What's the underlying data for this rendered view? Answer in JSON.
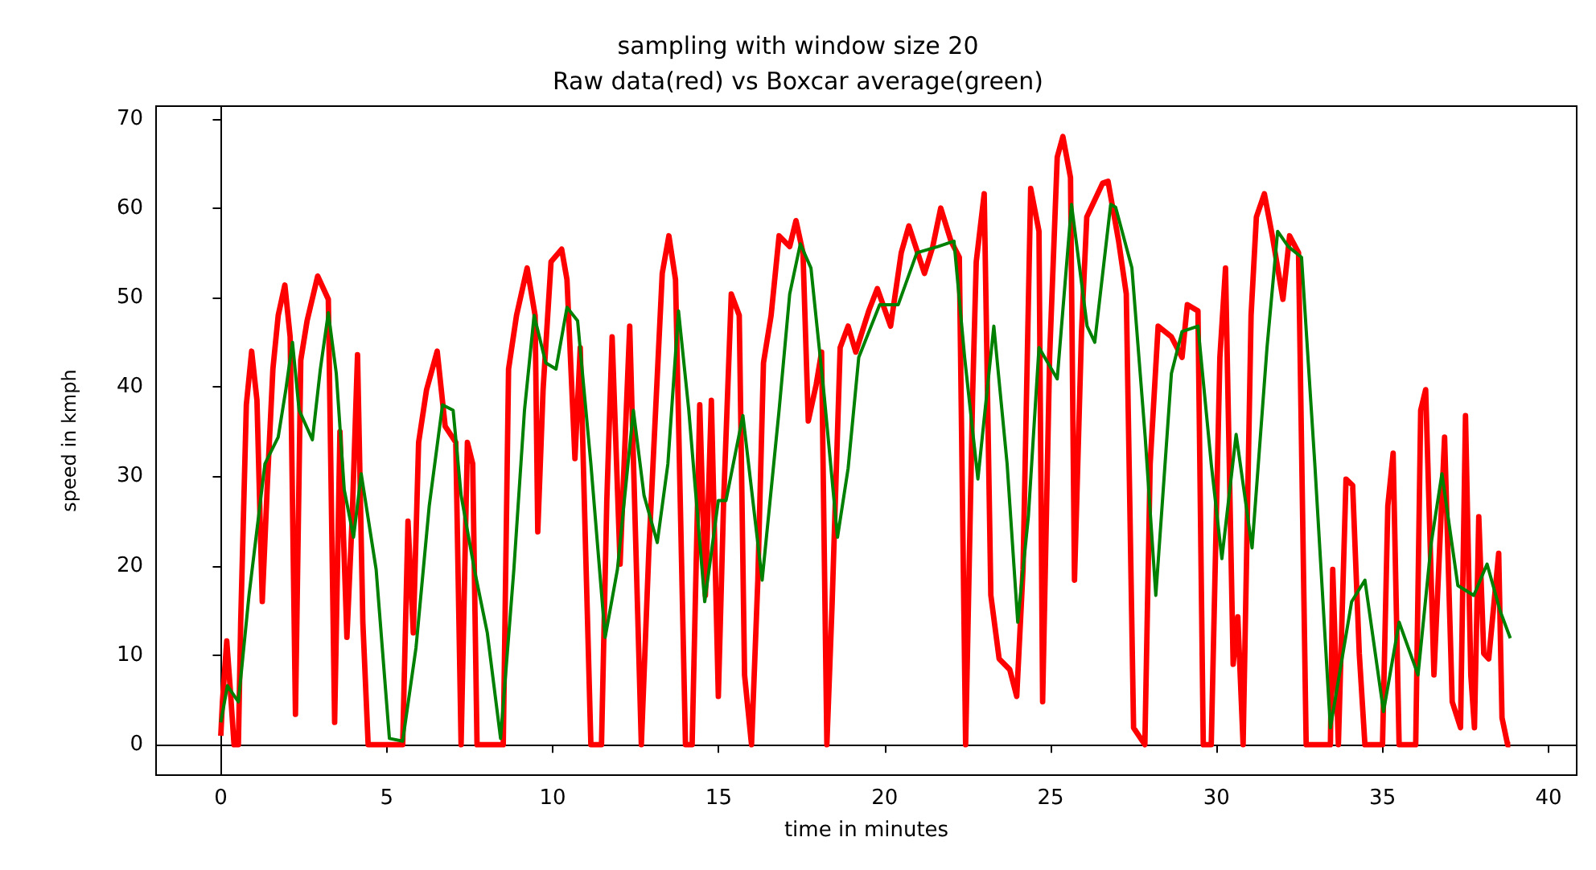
{
  "chart_data": {
    "type": "line",
    "title": "sampling with window size 20",
    "subtitle": "Raw data(red) vs Boxcar average(green)",
    "xlabel": "time in minutes",
    "ylabel": "speed in kmph",
    "xlim": [
      -1.95,
      40.85
    ],
    "ylim": [
      -3.4,
      71.4
    ],
    "xticks": [
      0,
      5,
      10,
      15,
      20,
      25,
      30,
      35,
      40
    ],
    "yticks": [
      0,
      10,
      20,
      30,
      40,
      50,
      60,
      70
    ],
    "series": [
      {
        "color": "#ff0000",
        "x": [
          0,
          0.05,
          0.18,
          0.29,
          0.4,
          0.53,
          0.6,
          0.77,
          0.93,
          1.09,
          1.25,
          1.41,
          1.57,
          1.73,
          1.93,
          2.09,
          2.25,
          2.41,
          2.6,
          2.92,
          3.24,
          3.43,
          3.59,
          3.8,
          3.96,
          4.12,
          4.28,
          4.44,
          5.48,
          5.64,
          5.8,
          5.96,
          6.2,
          6.52,
          6.76,
          7.08,
          7.24,
          7.43,
          7.59,
          7.72,
          8.51,
          8.67,
          8.91,
          9.23,
          9.47,
          9.55,
          9.71,
          9.95,
          10.27,
          10.43,
          10.67,
          10.83,
          10.99,
          11.15,
          11.47,
          11.63,
          11.79,
          12.03,
          12.32,
          12.67,
          12.9,
          13.3,
          13.5,
          13.7,
          14.0,
          14.2,
          14.43,
          14.6,
          14.78,
          14.99,
          15.15,
          15.38,
          15.62,
          15.78,
          15.99,
          16.18,
          16.35,
          16.58,
          16.82,
          17.14,
          17.33,
          17.54,
          17.7,
          17.94,
          18.1,
          18.26,
          18.42,
          18.66,
          18.9,
          19.13,
          19.53,
          19.78,
          20.18,
          20.5,
          20.73,
          21.2,
          21.45,
          21.69,
          22.0,
          22.25,
          22.44,
          22.65,
          22.76,
          23.0,
          23.2,
          23.45,
          23.77,
          23.98,
          24.17,
          24.4,
          24.65,
          24.76,
          24.97,
          25.2,
          25.37,
          25.6,
          25.72,
          25.93,
          26.09,
          26.57,
          26.73,
          27.05,
          27.28,
          27.5,
          27.84,
          28.0,
          28.24,
          28.64,
          28.96,
          29.12,
          29.44,
          29.6,
          29.84,
          30.1,
          30.27,
          30.5,
          30.64,
          30.8,
          31.04,
          31.2,
          31.44,
          31.68,
          32.0,
          32.2,
          32.47,
          32.7,
          33.43,
          33.5,
          33.67,
          33.9,
          34.1,
          34.3,
          34.47,
          35.0,
          35.16,
          35.32,
          35.5,
          36.0,
          36.15,
          36.3,
          36.55,
          36.87,
          37.1,
          37.35,
          37.5,
          37.66,
          37.77,
          37.9,
          38.05,
          38.2,
          38.5,
          38.6,
          38.77,
          38.85
        ],
        "values": [
          1,
          4.8,
          11.6,
          6,
          0,
          0,
          13.7,
          38,
          44,
          38.5,
          16,
          29.7,
          42,
          48,
          51.4,
          45.6,
          3.4,
          43,
          47.4,
          52.4,
          49.8,
          2.5,
          35,
          12,
          25.5,
          43.6,
          13.7,
          0,
          0,
          25,
          12.5,
          33.8,
          39.7,
          44,
          35.6,
          33.8,
          0,
          33.8,
          31.4,
          0,
          0,
          42,
          48,
          53.3,
          48,
          23.8,
          39.7,
          54,
          55.4,
          52,
          32,
          44.4,
          22,
          0,
          0,
          27.3,
          45.6,
          20.2,
          46.8,
          0,
          22,
          52.7,
          56.9,
          52,
          0,
          0,
          38,
          16.7,
          38.5,
          5.4,
          27.3,
          50.4,
          48,
          7.8,
          0,
          18.4,
          42.7,
          48,
          56.9,
          55.7,
          58.6,
          55,
          36.2,
          40.3,
          43.9,
          0,
          16,
          44.4,
          46.8,
          43.9,
          48.6,
          51,
          46.8,
          55,
          58,
          52.7,
          55.7,
          60,
          56.3,
          54.5,
          0,
          39,
          54,
          61.6,
          16.7,
          9.6,
          8.4,
          5.4,
          19.6,
          62.2,
          57.4,
          4.8,
          43.3,
          65.7,
          68,
          63.4,
          18.4,
          46,
          59,
          62.8,
          63,
          56.3,
          50.4,
          1.9,
          0,
          31.4,
          46.8,
          45.6,
          43.3,
          49.2,
          48.5,
          0,
          0,
          43.3,
          53.3,
          9,
          14.3,
          0,
          48,
          59,
          61.6,
          56.9,
          49.8,
          56.9,
          55,
          0,
          0,
          19.6,
          0,
          29.7,
          29,
          10.2,
          0,
          0,
          26.7,
          32.6,
          0,
          0,
          37.4,
          39.7,
          7.8,
          34.4,
          4.8,
          1.9,
          36.8,
          7.8,
          1.9,
          25.5,
          10.2,
          9.6,
          21.4,
          3,
          0,
          0
        ]
      },
      {
        "color": "#008000",
        "x": [
          0,
          0.2,
          0.53,
          0.85,
          1.33,
          1.73,
          1.96,
          2.16,
          2.36,
          2.76,
          3.0,
          3.24,
          3.48,
          3.72,
          4.0,
          4.23,
          4.68,
          5.08,
          5.48,
          5.88,
          6.28,
          6.68,
          7.0,
          7.24,
          7.64,
          8.03,
          8.43,
          8.83,
          9.15,
          9.44,
          9.79,
          10.1,
          10.43,
          10.75,
          11.15,
          11.58,
          11.95,
          12.43,
          12.75,
          13.15,
          13.47,
          13.79,
          14.1,
          14.58,
          14.99,
          15.22,
          15.73,
          16.31,
          16.82,
          17.14,
          17.46,
          17.78,
          18.18,
          18.58,
          18.9,
          19.22,
          19.85,
          20.41,
          20.97,
          21.61,
          22.09,
          22.41,
          22.81,
          23.29,
          23.69,
          24.01,
          24.33,
          24.65,
          25.2,
          25.63,
          26.1,
          26.33,
          26.81,
          26.96,
          27.45,
          27.85,
          28.17,
          28.64,
          28.96,
          29.44,
          29.84,
          30.16,
          30.59,
          31.07,
          31.52,
          31.84,
          32.16,
          32.56,
          32.96,
          33.43,
          34.07,
          34.47,
          35.03,
          35.5,
          36.07,
          36.47,
          36.79,
          37.27,
          37.75,
          38.15,
          38.55,
          38.85
        ],
        "values": [
          2.5,
          6.6,
          4.8,
          16.7,
          31.4,
          34.4,
          39.7,
          45,
          37.4,
          34.1,
          42,
          48.3,
          41.5,
          28.5,
          23.2,
          30.3,
          19.6,
          0.7,
          0.4,
          10.8,
          26.7,
          38,
          37.4,
          27.9,
          19.6,
          12.5,
          0.7,
          19.6,
          37.4,
          48,
          42.7,
          42,
          48.9,
          47.4,
          31.4,
          12,
          19.6,
          37.4,
          27.9,
          22.6,
          31.4,
          48.5,
          37.4,
          16,
          27.3,
          27.3,
          36.8,
          18.4,
          37.4,
          50.4,
          56,
          53.3,
          39,
          23.2,
          30.9,
          43.3,
          49.2,
          49.2,
          55,
          55.7,
          56.3,
          43.3,
          29.7,
          46.8,
          31.4,
          13.7,
          25.5,
          44.4,
          40.9,
          60.4,
          46.8,
          45,
          60.4,
          60.1,
          53.3,
          34.4,
          16.7,
          41.5,
          46.2,
          46.8,
          31.4,
          20.8,
          34.7,
          22,
          44.4,
          57.4,
          55.7,
          54.5,
          31.4,
          1.9,
          16,
          18.4,
          3.7,
          13.7,
          7.8,
          22.6,
          30.3,
          17.8,
          16.7,
          20.2,
          14.9,
          11.9
        ]
      }
    ]
  }
}
